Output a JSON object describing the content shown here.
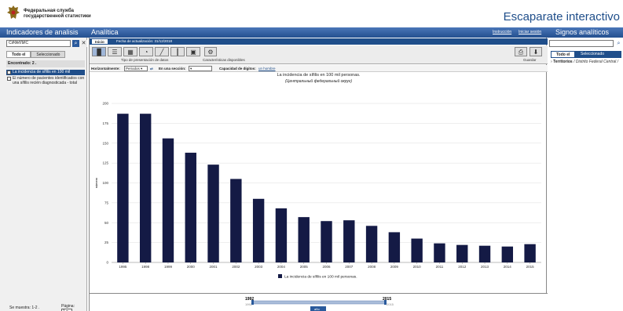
{
  "header": {
    "org_line1": "Федеральная служба",
    "org_line2": "государственной статистики",
    "app_title": "Escaparate interactivo"
  },
  "bar": {
    "left_title": "Indicadores de analisis",
    "center_title": "Analítica",
    "link_instruction": "Instrucción",
    "link_login": "Iniciar sesión",
    "right_title": "Signos analíticos"
  },
  "left_panel": {
    "search_value": "СИФИЛИС",
    "search_icon": "search-icon",
    "clear_icon": "close-icon",
    "tabs": [
      "Todo el",
      "Seleccionado"
    ],
    "found_label": "Encontrado: 2 .",
    "items": [
      "La incidencia de sífilis en 100 mil personas.",
      "El número de pacientes identificados con una sífilis recién diagnosticada - total"
    ],
    "footer_shown": "Se muestra: 1-2 .",
    "footer_page_label": "Página:",
    "footer_page_value": "1"
  },
  "center": {
    "tabs": [
      "Inicio",
      "Fecha de actualización: 31/12/2018"
    ],
    "toolbar_label_presentation": "Tipo de presentación de datos",
    "toolbar_label_features": "Características disponibles",
    "toolbar_label_save": "Guardar",
    "filter": {
      "horizontal_label": "Horizontalmente:",
      "horizontal_value": "Periodos",
      "section_label": "En una sección:",
      "section_value": "",
      "capacity_label": "Capacidad de dígitos:",
      "capacity_value": "un hombre"
    }
  },
  "chart_data": {
    "type": "bar",
    "title": "La incidencia de sífilis en 100 mil personas.",
    "subtitle": "(Центральный федеральный округ)",
    "ylabel": "número",
    "xlabel": "",
    "categories": [
      "1995",
      "1998",
      "1999",
      "2000",
      "2001",
      "2002",
      "2003",
      "2004",
      "2005",
      "2006",
      "2007",
      "2008",
      "2009",
      "2010",
      "2011",
      "2012",
      "2013",
      "2014",
      "2015"
    ],
    "series": [
      {
        "name": "La incidencia de sífilis en 100 mil personas.",
        "values": [
          187,
          187,
          156,
          138,
          123,
          105,
          80,
          68,
          57,
          52,
          53,
          46,
          38,
          30,
          24,
          22,
          21,
          20,
          23
        ]
      }
    ],
    "ylim": [
      0,
      200
    ],
    "yticks": [
      0,
      25,
      50,
      75,
      100,
      125,
      150,
      175,
      200
    ],
    "grid": true,
    "legend_position": "bottom",
    "bar_color": "#141a45"
  },
  "timeline": {
    "start_top": "1992",
    "start_bottom": "1992",
    "end_top": "2015",
    "end_bottom": "2015",
    "unit_label": "año"
  },
  "right_panel": {
    "tabs": [
      "Todo el",
      "Seleccionado"
    ],
    "territories_label": "Territorios",
    "territories_value": "/ Distrito Federal Central /"
  }
}
